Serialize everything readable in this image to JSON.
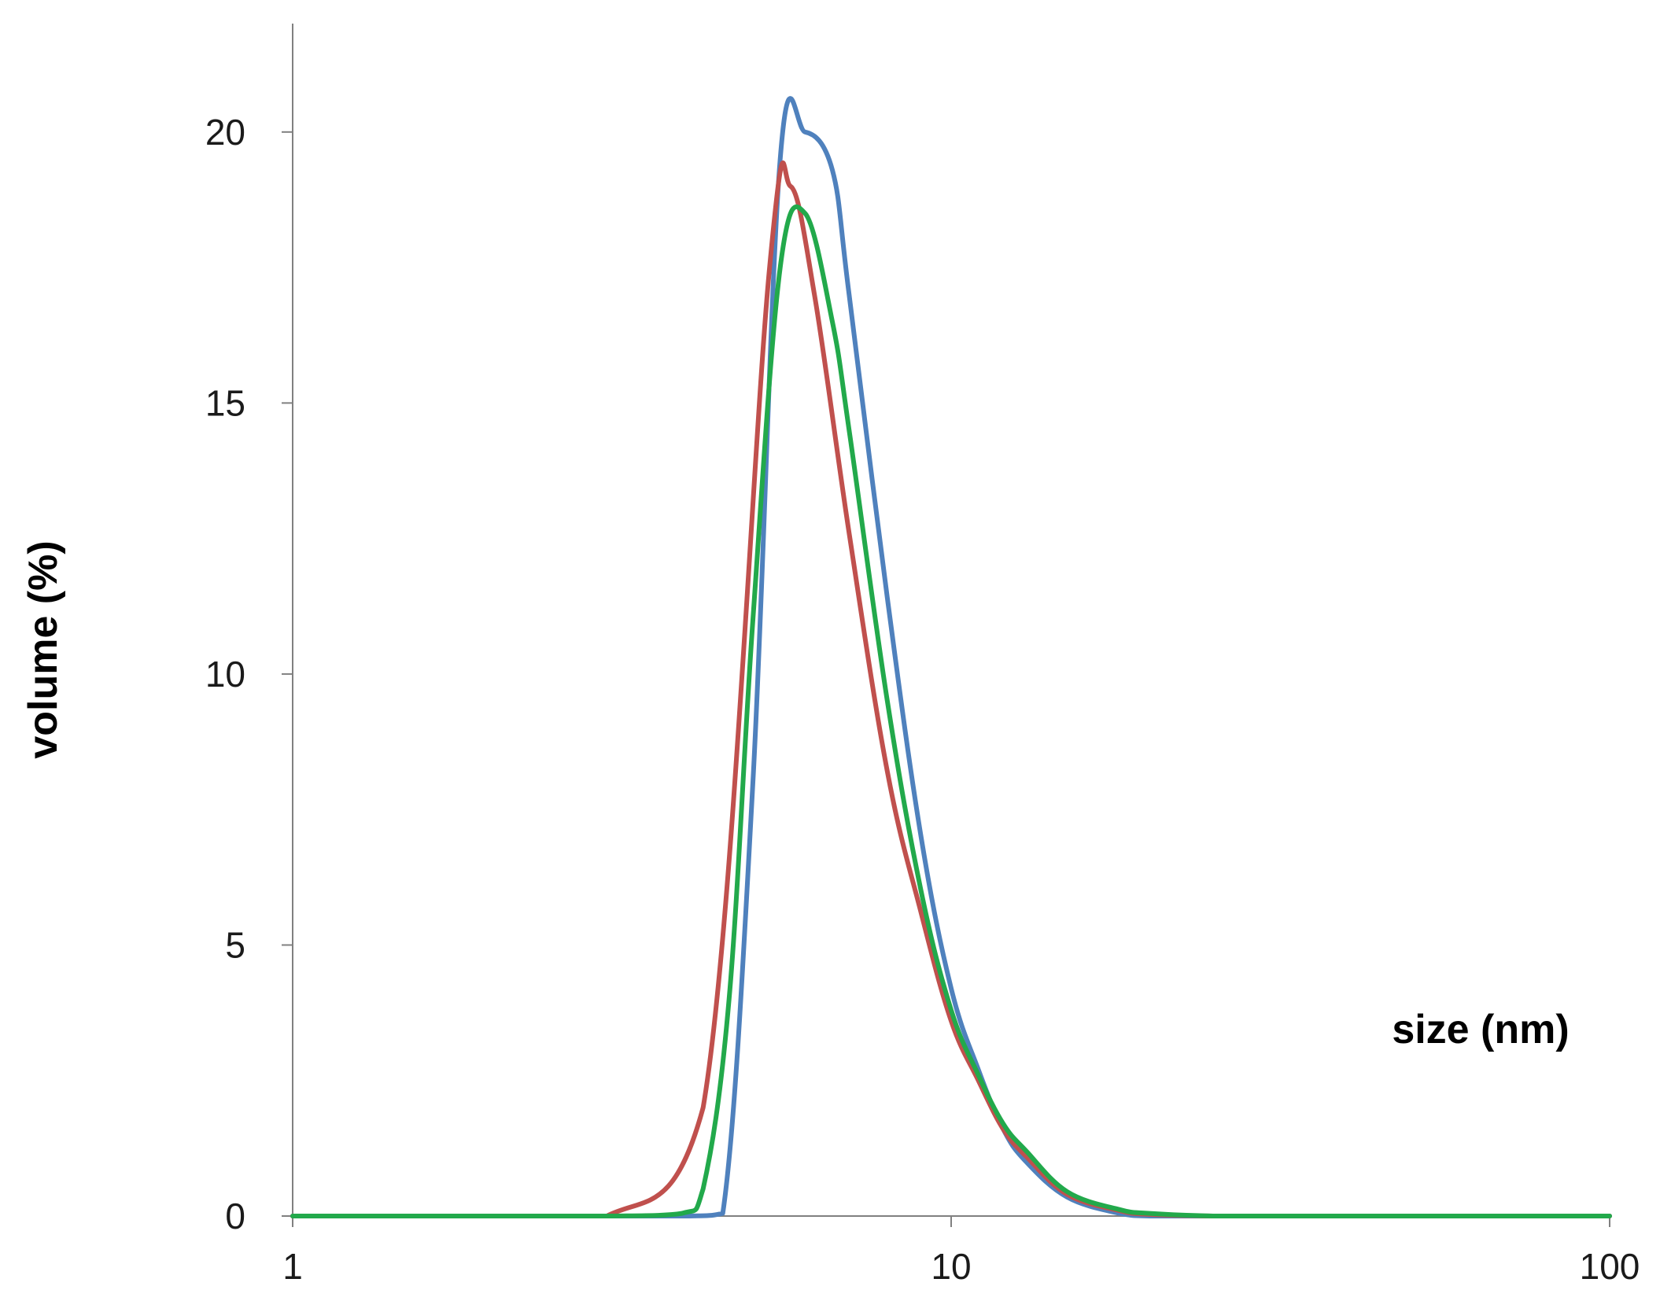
{
  "chart_data": {
    "type": "line",
    "title": "",
    "xlabel": "size (nm)",
    "ylabel": "volume (%)",
    "x_scale": "log",
    "xlim": [
      1,
      100
    ],
    "ylim": [
      0,
      22
    ],
    "x_ticks": [
      1,
      10,
      100
    ],
    "x_tick_labels": [
      "1",
      "10",
      "100"
    ],
    "y_ticks": [
      0,
      5,
      10,
      15,
      20
    ],
    "y_tick_labels": [
      "0",
      "5",
      "10",
      "15",
      "20"
    ],
    "grid": false,
    "legend": "none",
    "series": [
      {
        "color": "#4f81bd",
        "x": [
          1,
          2,
          3,
          4,
          4.5,
          5,
          5.5,
          6,
          6.6,
          7,
          8,
          9,
          10,
          11,
          12,
          13,
          15,
          18,
          20,
          25,
          30,
          50,
          100
        ],
        "y": [
          0,
          0,
          0,
          0,
          0.05,
          8,
          19.5,
          20,
          19.3,
          17,
          11.4,
          7,
          4.2,
          2.7,
          1.6,
          1,
          0.35,
          0.05,
          0,
          0,
          0,
          0,
          0
        ]
      },
      {
        "color": "#c0504d",
        "x": [
          1,
          2,
          3,
          4.2,
          5.3,
          5.7,
          6.2,
          7,
          8,
          9,
          10,
          11,
          12,
          13,
          15,
          18,
          20,
          25,
          30,
          50,
          100
        ],
        "y": [
          0,
          0,
          0,
          2,
          17.5,
          19,
          17,
          12.6,
          8.2,
          5.6,
          3.6,
          2.5,
          1.6,
          1.1,
          0.4,
          0.1,
          0.03,
          0,
          0,
          0,
          0
        ]
      },
      {
        "color": "#22a94b",
        "x": [
          1,
          2,
          3,
          3.9,
          4.2,
          4.6,
          5,
          5.5,
          6,
          6.6,
          7,
          8,
          9,
          10,
          11,
          12,
          13,
          15,
          18,
          20,
          25,
          30,
          50,
          100
        ],
        "y": [
          0,
          0,
          0,
          0.05,
          0.5,
          4,
          11,
          17.5,
          18.5,
          16.5,
          14.5,
          9.5,
          6,
          3.8,
          2.6,
          1.7,
          1.2,
          0.45,
          0.12,
          0.05,
          0,
          0,
          0,
          0
        ]
      }
    ]
  }
}
